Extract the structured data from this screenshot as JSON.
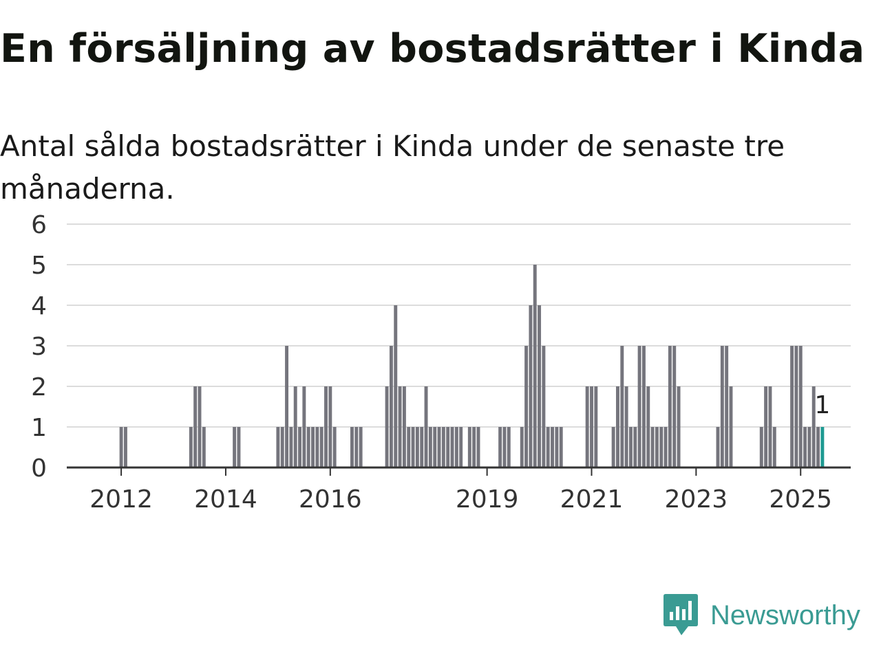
{
  "title": "En försäljning av bostadsrätter i Kinda",
  "subtitle": "Antal sålda bostadsrätter i Kinda under de senaste tre månaderna.",
  "brand": {
    "name": "Newsworthy",
    "icon": "newsworthy-logo-icon"
  },
  "colors": {
    "bar": "#75757d",
    "highlight": "#1e9a92",
    "grid": "#dcdcdc",
    "axis": "#333333",
    "brand": "#3a9b93"
  },
  "chart_data": {
    "type": "bar",
    "title": "",
    "xlabel": "",
    "ylabel": "",
    "ylim": [
      0,
      6
    ],
    "yticks": [
      0,
      1,
      2,
      3,
      4,
      5,
      6
    ],
    "x_range": [
      "2011-01",
      "2025-12"
    ],
    "xticks": [
      {
        "label": "2012",
        "x": "2012-01"
      },
      {
        "label": "2014",
        "x": "2014-01"
      },
      {
        "label": "2016",
        "x": "2016-01"
      },
      {
        "label": "2019",
        "x": "2019-01"
      },
      {
        "label": "2021",
        "x": "2021-01"
      },
      {
        "label": "2023",
        "x": "2023-01"
      },
      {
        "label": "2025",
        "x": "2025-01"
      }
    ],
    "highlight": {
      "x": "2025-06",
      "label": "1"
    },
    "grid": true,
    "legend": "none",
    "data": [
      {
        "x": "2012-01",
        "y": 1
      },
      {
        "x": "2012-02",
        "y": 1
      },
      {
        "x": "2013-05",
        "y": 1
      },
      {
        "x": "2013-06",
        "y": 2
      },
      {
        "x": "2013-07",
        "y": 2
      },
      {
        "x": "2013-08",
        "y": 1
      },
      {
        "x": "2014-03",
        "y": 1
      },
      {
        "x": "2014-04",
        "y": 1
      },
      {
        "x": "2015-01",
        "y": 1
      },
      {
        "x": "2015-02",
        "y": 1
      },
      {
        "x": "2015-03",
        "y": 3
      },
      {
        "x": "2015-04",
        "y": 1
      },
      {
        "x": "2015-05",
        "y": 2
      },
      {
        "x": "2015-06",
        "y": 1
      },
      {
        "x": "2015-07",
        "y": 2
      },
      {
        "x": "2015-08",
        "y": 1
      },
      {
        "x": "2015-09",
        "y": 1
      },
      {
        "x": "2015-10",
        "y": 1
      },
      {
        "x": "2015-11",
        "y": 1
      },
      {
        "x": "2015-12",
        "y": 2
      },
      {
        "x": "2016-01",
        "y": 2
      },
      {
        "x": "2016-02",
        "y": 1
      },
      {
        "x": "2016-06",
        "y": 1
      },
      {
        "x": "2016-07",
        "y": 1
      },
      {
        "x": "2016-08",
        "y": 1
      },
      {
        "x": "2017-02",
        "y": 2
      },
      {
        "x": "2017-03",
        "y": 3
      },
      {
        "x": "2017-04",
        "y": 4
      },
      {
        "x": "2017-05",
        "y": 2
      },
      {
        "x": "2017-06",
        "y": 2
      },
      {
        "x": "2017-07",
        "y": 1
      },
      {
        "x": "2017-08",
        "y": 1
      },
      {
        "x": "2017-09",
        "y": 1
      },
      {
        "x": "2017-10",
        "y": 1
      },
      {
        "x": "2017-11",
        "y": 2
      },
      {
        "x": "2017-12",
        "y": 1
      },
      {
        "x": "2018-01",
        "y": 1
      },
      {
        "x": "2018-02",
        "y": 1
      },
      {
        "x": "2018-03",
        "y": 1
      },
      {
        "x": "2018-04",
        "y": 1
      },
      {
        "x": "2018-05",
        "y": 1
      },
      {
        "x": "2018-06",
        "y": 1
      },
      {
        "x": "2018-07",
        "y": 1
      },
      {
        "x": "2018-09",
        "y": 1
      },
      {
        "x": "2018-10",
        "y": 1
      },
      {
        "x": "2018-11",
        "y": 1
      },
      {
        "x": "2019-04",
        "y": 1
      },
      {
        "x": "2019-05",
        "y": 1
      },
      {
        "x": "2019-06",
        "y": 1
      },
      {
        "x": "2019-09",
        "y": 1
      },
      {
        "x": "2019-10",
        "y": 3
      },
      {
        "x": "2019-11",
        "y": 4
      },
      {
        "x": "2019-12",
        "y": 5
      },
      {
        "x": "2020-01",
        "y": 4
      },
      {
        "x": "2020-02",
        "y": 3
      },
      {
        "x": "2020-03",
        "y": 1
      },
      {
        "x": "2020-04",
        "y": 1
      },
      {
        "x": "2020-05",
        "y": 1
      },
      {
        "x": "2020-06",
        "y": 1
      },
      {
        "x": "2020-12",
        "y": 2
      },
      {
        "x": "2021-01",
        "y": 2
      },
      {
        "x": "2021-02",
        "y": 2
      },
      {
        "x": "2021-06",
        "y": 1
      },
      {
        "x": "2021-07",
        "y": 2
      },
      {
        "x": "2021-08",
        "y": 3
      },
      {
        "x": "2021-09",
        "y": 2
      },
      {
        "x": "2021-10",
        "y": 1
      },
      {
        "x": "2021-11",
        "y": 1
      },
      {
        "x": "2021-12",
        "y": 3
      },
      {
        "x": "2022-01",
        "y": 3
      },
      {
        "x": "2022-02",
        "y": 2
      },
      {
        "x": "2022-03",
        "y": 1
      },
      {
        "x": "2022-04",
        "y": 1
      },
      {
        "x": "2022-05",
        "y": 1
      },
      {
        "x": "2022-06",
        "y": 1
      },
      {
        "x": "2022-07",
        "y": 3
      },
      {
        "x": "2022-08",
        "y": 3
      },
      {
        "x": "2022-09",
        "y": 2
      },
      {
        "x": "2023-06",
        "y": 1
      },
      {
        "x": "2023-07",
        "y": 3
      },
      {
        "x": "2023-08",
        "y": 3
      },
      {
        "x": "2023-09",
        "y": 2
      },
      {
        "x": "2024-04",
        "y": 1
      },
      {
        "x": "2024-05",
        "y": 2
      },
      {
        "x": "2024-06",
        "y": 2
      },
      {
        "x": "2024-07",
        "y": 1
      },
      {
        "x": "2024-11",
        "y": 3
      },
      {
        "x": "2024-12",
        "y": 3
      },
      {
        "x": "2025-01",
        "y": 3
      },
      {
        "x": "2025-02",
        "y": 1
      },
      {
        "x": "2025-03",
        "y": 1
      },
      {
        "x": "2025-04",
        "y": 2
      },
      {
        "x": "2025-05",
        "y": 1
      },
      {
        "x": "2025-06",
        "y": 1
      }
    ]
  }
}
